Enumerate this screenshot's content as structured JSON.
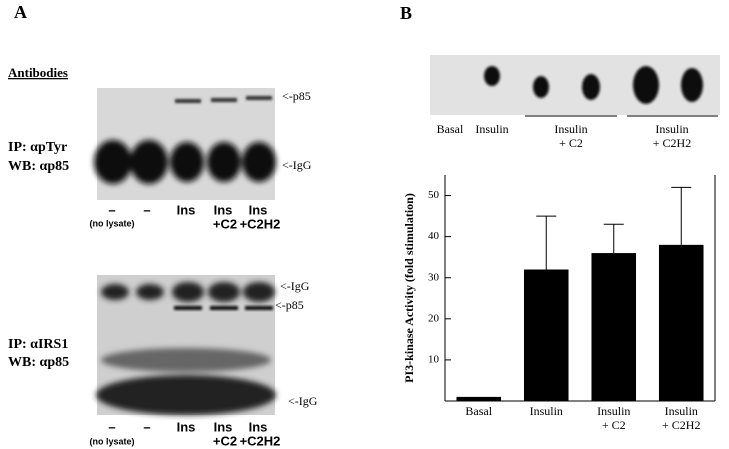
{
  "panel_a": {
    "label": "A",
    "heading": "Antibodies",
    "blot_1": {
      "ip": "IP:  αpTyr",
      "wb": "WB:  αp85",
      "band_top": "<-p85",
      "band_bottom": "<-IgG"
    },
    "blot_2": {
      "ip": "IP:  αIRS1",
      "wb": "WB:  αp85",
      "band_top": "<-IgG",
      "band_middle": "<-p85",
      "band_bottom": "<-IgG"
    },
    "lanes": [
      [
        "–"
      ],
      [
        "–"
      ],
      [
        "Ins"
      ],
      [
        "Ins",
        "+C2"
      ],
      [
        "Ins",
        "+C2H2"
      ]
    ],
    "no_lysate": "(no lysate)"
  },
  "panel_b": {
    "label": "B",
    "dot_labels": [
      [
        "Basal"
      ],
      [
        "Insulin"
      ],
      [
        "Insulin",
        "+ C2"
      ],
      [
        "Insulin",
        "+ C2H2"
      ]
    ]
  },
  "chart_data": {
    "type": "bar",
    "ylabel": "PI3-kinase Activity (fold stimulation)",
    "categories": [
      "Basal",
      "Insulin",
      "Insulin\n+ C2",
      "Insulin\n+ C2H2"
    ],
    "values": [
      1,
      32,
      36,
      38
    ],
    "errors": [
      null,
      13,
      7,
      14
    ],
    "color": "#000000",
    "ylim": [
      0,
      55
    ],
    "yticks": [
      10,
      20,
      30,
      40,
      50
    ]
  }
}
